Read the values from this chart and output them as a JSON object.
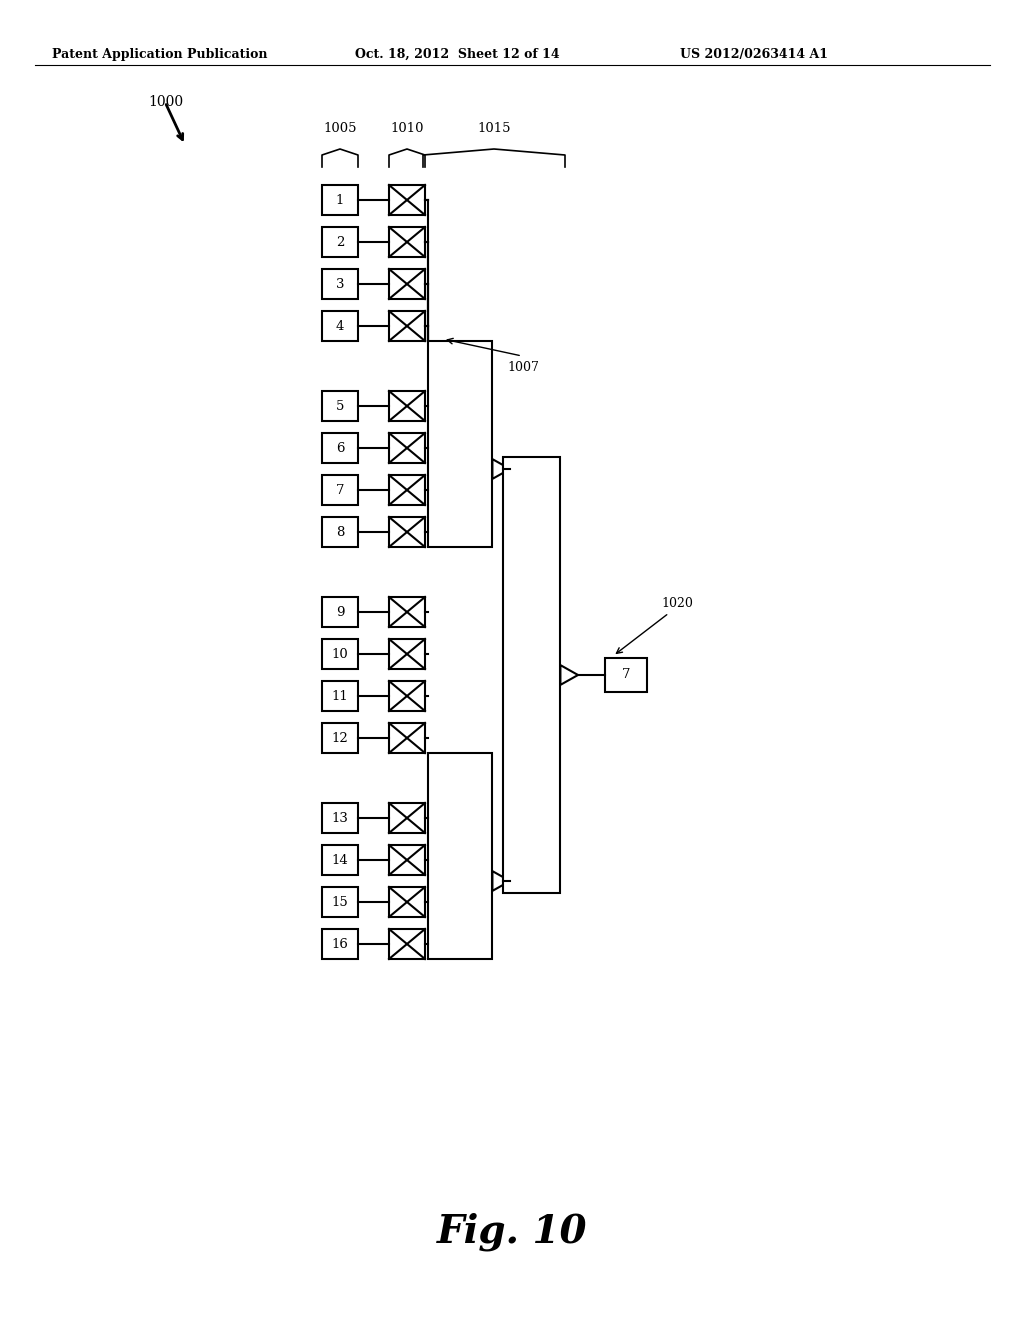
{
  "patent_header": "Patent Application Publication",
  "patent_date": "Oct. 18, 2012  Sheet 12 of 14",
  "patent_number": "US 2012/0263414 A1",
  "main_label": "1000",
  "col_label_1005": "1005",
  "col_label_1010": "1010",
  "col_label_1015": "1015",
  "label_1007": "1007",
  "label_1020": "1020",
  "output_box_label": "7",
  "fig_caption": "Fig. 10",
  "bg_color": "#ffffff"
}
